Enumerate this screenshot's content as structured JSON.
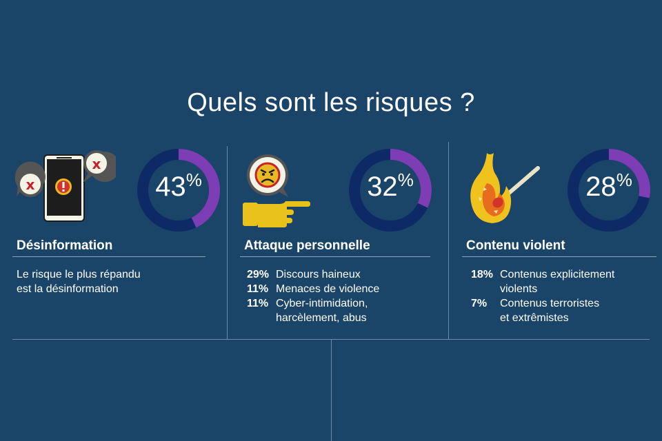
{
  "title": "Quels sont les risques ?",
  "colors": {
    "background": "#1a4468",
    "donut_track": "#0d2a66",
    "donut_fill": "#7c3db5"
  },
  "panels": [
    {
      "icon": "phone-warning-icon",
      "percent": 43,
      "percent_value": "43",
      "percent_sign": "%",
      "heading": "Désinformation",
      "description_lines": [
        "Le risque le plus répandu",
        "est la désinformation"
      ]
    },
    {
      "icon": "angry-pointing-hand-icon",
      "percent": 32,
      "percent_value": "32",
      "percent_sign": "%",
      "heading": "Attaque personnelle",
      "stats": [
        {
          "num": "29%",
          "lines": [
            "Discours haineux"
          ]
        },
        {
          "num": "11%",
          "lines": [
            "Menaces de violence"
          ]
        },
        {
          "num": "11%",
          "lines": [
            "Cyber-intimidation,",
            "harcèlement, abus"
          ]
        }
      ]
    },
    {
      "icon": "burning-match-icon",
      "percent": 28,
      "percent_value": "28",
      "percent_sign": "%",
      "heading": "Contenu violent",
      "stats": [
        {
          "num": "18%",
          "lines": [
            "Contenus explicitement",
            "violents"
          ]
        },
        {
          "num": "7%",
          "lines": [
            "Contenus terroristes",
            "et extrêmistes"
          ]
        }
      ]
    }
  ]
}
